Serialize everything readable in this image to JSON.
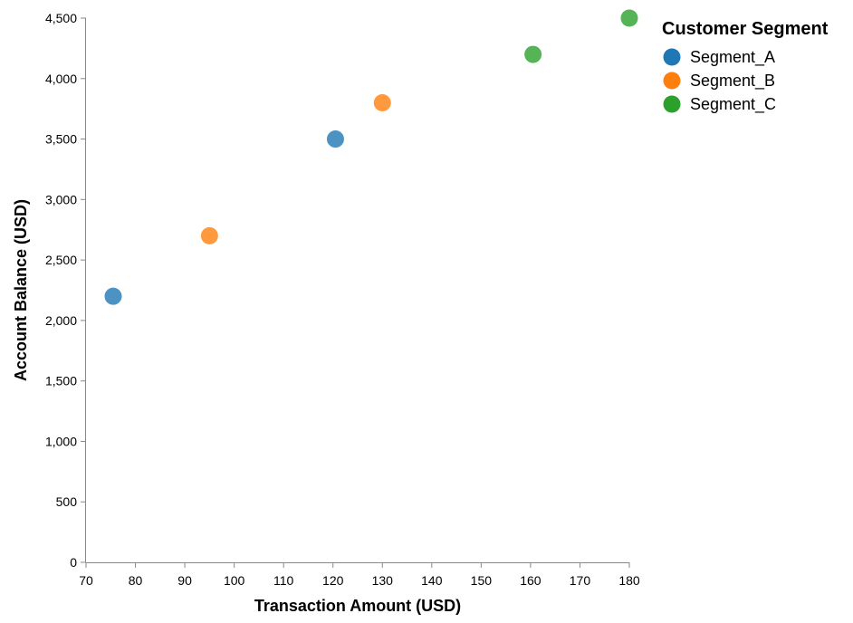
{
  "chart_data": {
    "type": "scatter",
    "title": "",
    "xlabel": "Transaction Amount (USD)",
    "ylabel": "Account Balance (USD)",
    "xlim": [
      70,
      180
    ],
    "ylim": [
      0,
      4500
    ],
    "x_ticks": [
      70,
      80,
      90,
      100,
      110,
      120,
      130,
      140,
      150,
      160,
      170,
      180
    ],
    "y_ticks": [
      0,
      500,
      1000,
      1500,
      2000,
      2500,
      3000,
      3500,
      4000,
      4500
    ],
    "x_tick_labels": [
      "70",
      "80",
      "90",
      "100",
      "110",
      "120",
      "130",
      "140",
      "150",
      "160",
      "170",
      "180"
    ],
    "y_tick_labels": [
      "0",
      "500",
      "1,000",
      "1,500",
      "2,000",
      "2,500",
      "3,000",
      "3,500",
      "4,000",
      "4,500"
    ],
    "grid": false,
    "legend": {
      "title": "Customer Segment",
      "placement": "right"
    },
    "series": [
      {
        "name": "Segment_A",
        "color": "#1f77b4",
        "points": [
          {
            "x": 75.5,
            "y": 2200
          },
          {
            "x": 120.5,
            "y": 3500
          }
        ]
      },
      {
        "name": "Segment_B",
        "color": "#ff7f0e",
        "points": [
          {
            "x": 95,
            "y": 2700
          },
          {
            "x": 130,
            "y": 3800
          }
        ]
      },
      {
        "name": "Segment_C",
        "color": "#2ca02c",
        "points": [
          {
            "x": 160.5,
            "y": 4200
          },
          {
            "x": 180,
            "y": 4500
          }
        ]
      }
    ]
  }
}
